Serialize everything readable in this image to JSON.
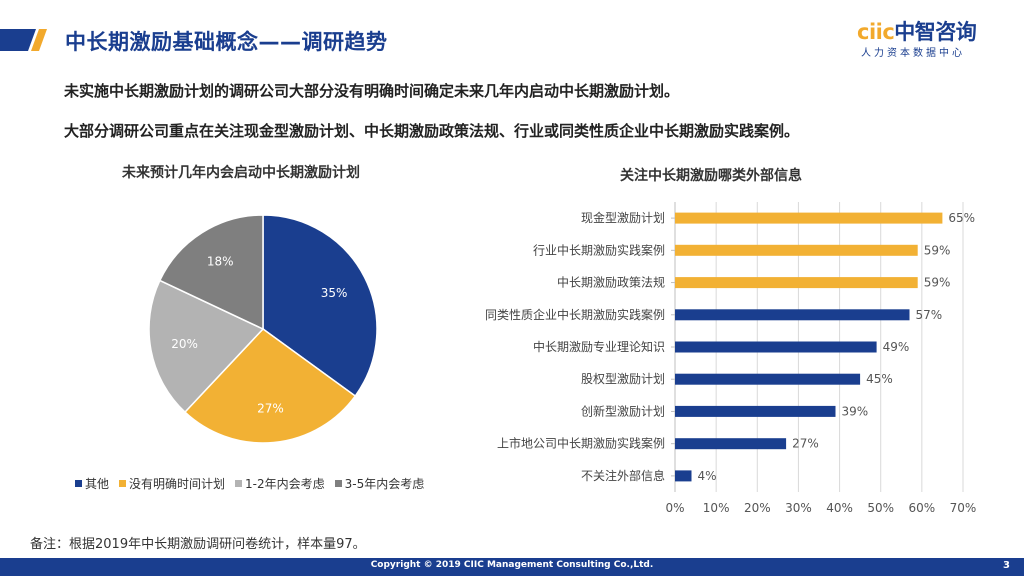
{
  "header": {
    "title": "中长期激励基础概念——调研趋势",
    "bar_colors": [
      "#1a3e8f",
      "#f2a92c"
    ]
  },
  "logo": {
    "main_accent": "ciic",
    "main_rest": "中智咨询",
    "sub": "人力资本数据中心"
  },
  "bullets": [
    "未实施中长期激励计划的调研公司大部分没有明确时间确定未来几年内启动中长期激励计划。",
    "大部分调研公司重点在关注现金型激励计划、中长期激励政策法规、行业或同类性质企业中长期激励实践案例。"
  ],
  "note": "备注：根据2019年中长期激励调研问卷统计，样本量97。",
  "footer": {
    "copyright": "Copyright © 2019 CIIC Management Consulting Co.,Ltd.",
    "page": "3"
  },
  "chart_data": [
    {
      "type": "pie",
      "title": "未来预计几年内会启动中长期激励计划",
      "categories": [
        "其他",
        "没有明确时间计划",
        "1-2年内会考虑",
        "3-5年内会考虑"
      ],
      "values": [
        35,
        27,
        20,
        18
      ],
      "labels": [
        "35%",
        "27%",
        "20%",
        "18%"
      ],
      "colors": [
        "#1a3e8f",
        "#f2b134",
        "#b3b3b3",
        "#7f7f7f"
      ],
      "legend_position": "bottom"
    },
    {
      "type": "bar",
      "orientation": "horizontal",
      "title": "关注中长期激励哪类外部信息",
      "categories": [
        "现金型激励计划",
        "行业中长期激励实践案例",
        "中长期激励政策法规",
        "同类性质企业中长期激励实践案例",
        "中长期激励专业理论知识",
        "股权型激励计划",
        "创新型激励计划",
        "上市地公司中长期激励实践案例",
        "不关注外部信息"
      ],
      "values": [
        65,
        59,
        59,
        57,
        49,
        45,
        39,
        27,
        4
      ],
      "labels": [
        "65%",
        "59%",
        "59%",
        "57%",
        "49%",
        "45%",
        "39%",
        "27%",
        "4%"
      ],
      "colors": [
        "#f2b134",
        "#f2b134",
        "#f2b134",
        "#1a3e8f",
        "#1a3e8f",
        "#1a3e8f",
        "#1a3e8f",
        "#1a3e8f",
        "#1a3e8f"
      ],
      "xlim": [
        0,
        70
      ],
      "xticks": [
        "0%",
        "10%",
        "20%",
        "30%",
        "40%",
        "50%",
        "60%",
        "70%"
      ],
      "grid": true
    }
  ]
}
